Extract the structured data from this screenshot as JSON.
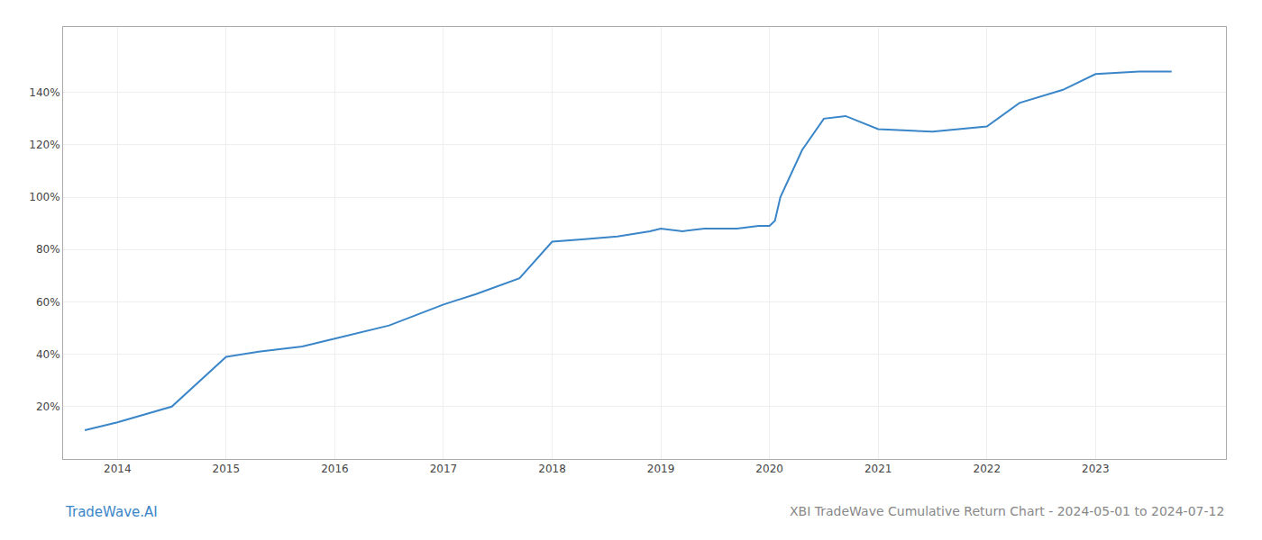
{
  "chart_data": {
    "type": "line",
    "title": "XBI TradeWave Cumulative Return Chart - 2024-05-01 to 2024-07-12",
    "annotations": [
      "TradeWave.AI"
    ],
    "x": [
      2013.7,
      2014.0,
      2014.5,
      2015.0,
      2015.3,
      2015.7,
      2016.0,
      2016.5,
      2017.0,
      2017.3,
      2017.7,
      2018.0,
      2018.3,
      2018.6,
      2018.9,
      2019.0,
      2019.2,
      2019.4,
      2019.7,
      2019.9,
      2020.0,
      2020.05,
      2020.1,
      2020.3,
      2020.5,
      2020.7,
      2021.0,
      2021.5,
      2022.0,
      2022.3,
      2022.7,
      2023.0,
      2023.4,
      2023.7
    ],
    "values": [
      11,
      14,
      20,
      39,
      41,
      43,
      46,
      51,
      59,
      63,
      69,
      83,
      84,
      85,
      87,
      88,
      87,
      88,
      88,
      89,
      89,
      91,
      100,
      118,
      130,
      131,
      126,
      125,
      127,
      136,
      141,
      147,
      148,
      148
    ],
    "color": "#3a86c8",
    "xlim": [
      2013.5,
      2024.2
    ],
    "ylim": [
      0,
      165
    ],
    "xticks": [
      2014,
      2015,
      2016,
      2017,
      2018,
      2019,
      2020,
      2021,
      2022,
      2023
    ],
    "yticks": [
      {
        "value": 20,
        "label": "20%"
      },
      {
        "value": 40,
        "label": "40%"
      },
      {
        "value": 60,
        "label": "60%"
      },
      {
        "value": 80,
        "label": "80%"
      },
      {
        "value": 100,
        "label": "100%"
      },
      {
        "value": 120,
        "label": "120%"
      },
      {
        "value": 140,
        "label": "140%"
      }
    ],
    "grid": true
  }
}
